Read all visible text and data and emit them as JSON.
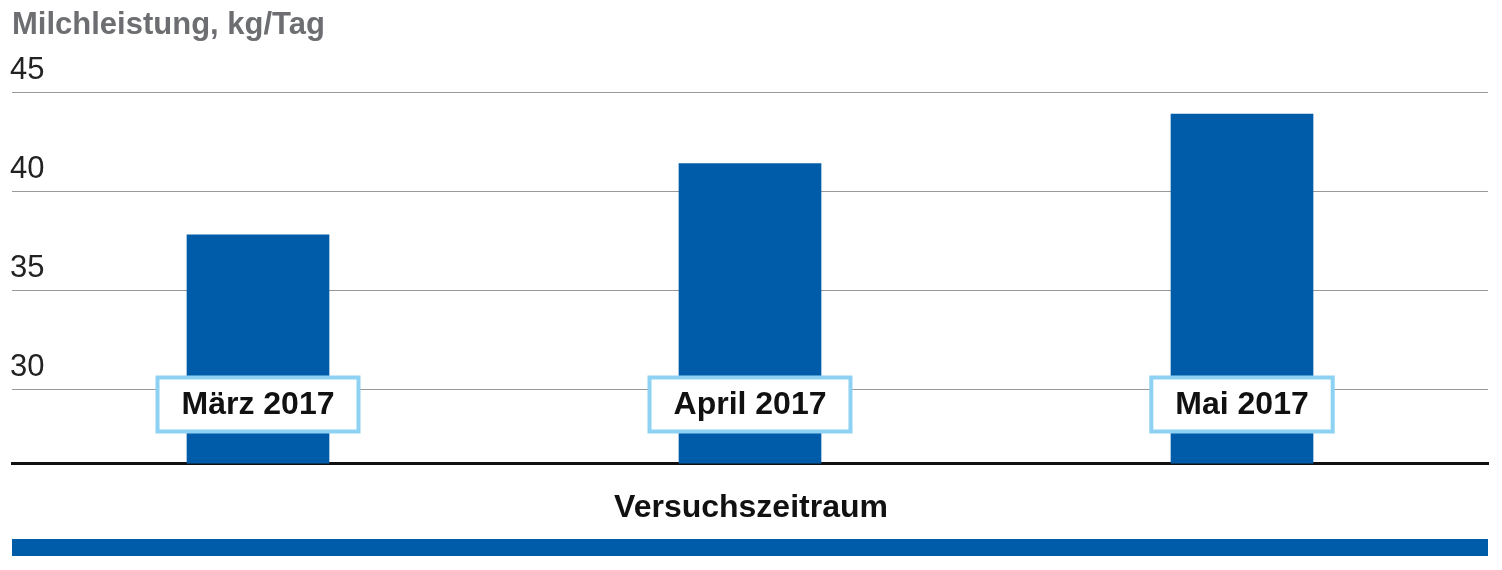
{
  "chart_data": {
    "type": "bar",
    "ylabel": "Milchleistung, kg/Tag",
    "xlabel": "Versuchszeitraum",
    "categories": [
      "März 2017",
      "April 2017",
      "Mai 2017"
    ],
    "values": [
      37.8,
      41.4,
      43.9
    ],
    "color": "#005ca9",
    "ylim": [
      26.25,
      45
    ],
    "yticks": [
      30,
      35,
      40,
      45
    ],
    "grid": "y",
    "legend": false
  }
}
